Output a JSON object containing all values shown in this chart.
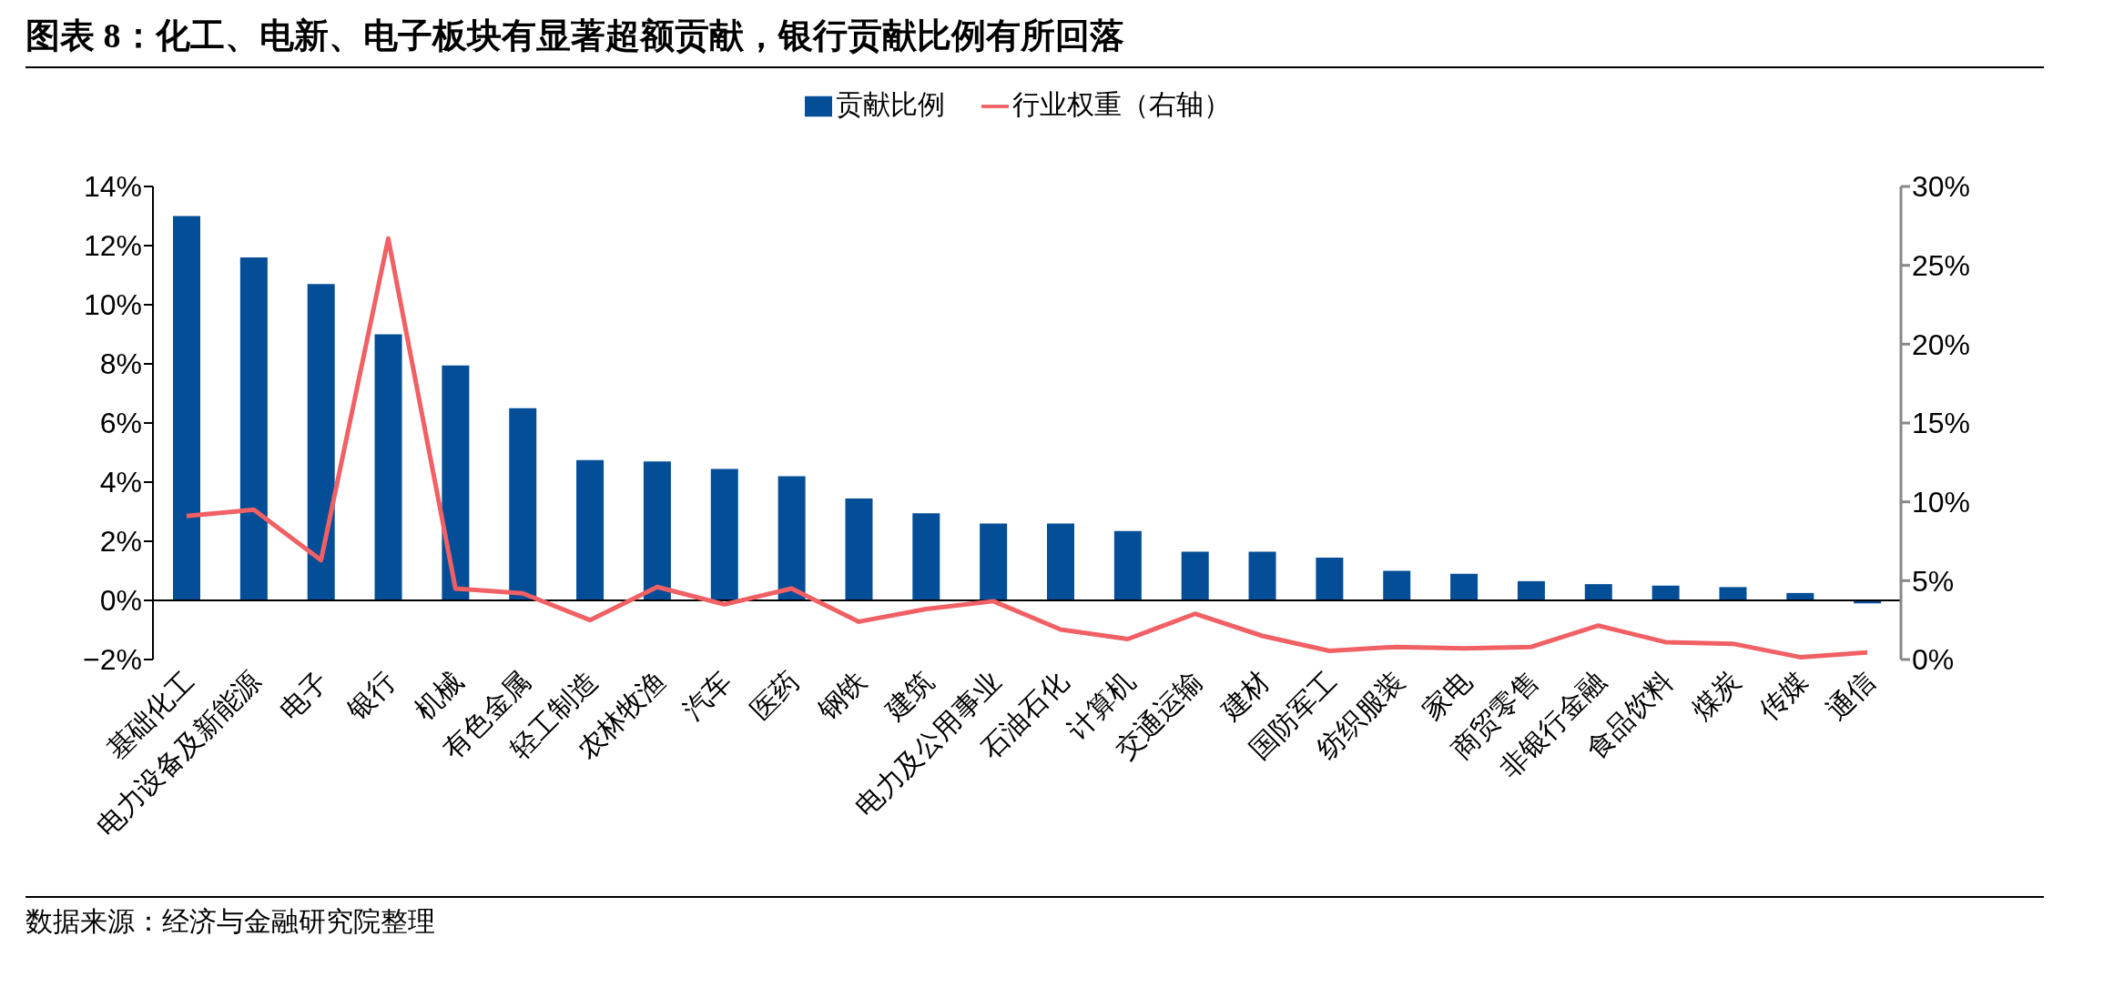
{
  "chart_data": {
    "type": "bar",
    "title": "图表 8：化工、电新、电子板块有显著超额贡献，银行贡献比例有所回落",
    "categories": [
      "基础化工",
      "电力设备及新能源",
      "电子",
      "银行",
      "机械",
      "有色金属",
      "轻工制造",
      "农林牧渔",
      "汽车",
      "医药",
      "钢铁",
      "建筑",
      "电力及公用事业",
      "石油石化",
      "计算机",
      "交通运输",
      "建材",
      "国防军工",
      "纺织服装",
      "家电",
      "商贸零售",
      "非银行金融",
      "食品饮料",
      "煤炭",
      "传媒",
      "通信"
    ],
    "series": [
      {
        "name": "贡献比例",
        "color": "#044e97",
        "values": [
          13.0,
          11.6,
          10.7,
          9.0,
          7.95,
          6.5,
          4.75,
          4.7,
          4.45,
          4.2,
          3.45,
          2.95,
          2.6,
          2.6,
          2.35,
          1.65,
          1.65,
          1.45,
          1.0,
          0.9,
          0.65,
          0.55,
          0.5,
          0.45,
          0.25,
          -0.1
        ]
      },
      {
        "name": "行业权重（右轴）",
        "type": "line",
        "axis": "y2",
        "color": "#f06064",
        "values": [
          9.1,
          9.5,
          6.3,
          26.7,
          4.5,
          4.2,
          2.5,
          4.6,
          3.5,
          4.5,
          2.4,
          3.2,
          3.7,
          1.9,
          1.3,
          2.9,
          1.5,
          0.55,
          0.8,
          0.7,
          0.8,
          2.15,
          1.1,
          1.0,
          0.15,
          0.45
        ]
      }
    ],
    "ylim": [
      -2,
      14
    ],
    "yticks": [
      {
        "value": -2,
        "label": "−2%"
      },
      {
        "value": 0,
        "label": "0%"
      },
      {
        "value": 2,
        "label": "2%"
      },
      {
        "value": 4,
        "label": "4%"
      },
      {
        "value": 6,
        "label": "6%"
      },
      {
        "value": 8,
        "label": "8%"
      },
      {
        "value": 10,
        "label": "10%"
      },
      {
        "value": 12,
        "label": "12%"
      },
      {
        "value": 14,
        "label": "14%"
      }
    ],
    "y2lim": [
      0,
      30
    ],
    "y2ticks": [
      {
        "value": 0,
        "label": "0%"
      },
      {
        "value": 5,
        "label": "5%"
      },
      {
        "value": 10,
        "label": "10%"
      },
      {
        "value": 15,
        "label": "15%"
      },
      {
        "value": 20,
        "label": "20%"
      },
      {
        "value": 25,
        "label": "25%"
      },
      {
        "value": 30,
        "label": "30%"
      }
    ],
    "legend": "top",
    "grid": false,
    "marker": "none",
    "line_style": "solid",
    "annotations": [
      "数据来源：经济与金融研究院整理"
    ]
  }
}
